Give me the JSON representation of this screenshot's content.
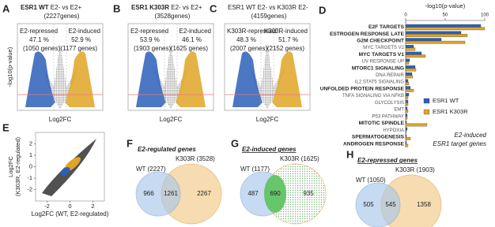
{
  "volcano": [
    {
      "letter": "A",
      "title_bold": "ESR1 WT",
      "title_rest": " E2- vs E2+",
      "total": "(2227genes)",
      "left_label": "E2-repressed",
      "left_pct": "47.1 %",
      "left_count": "(1050 genes)",
      "right_label": "E2-induced",
      "right_pct": "52.9 %",
      "right_count": "(1177 genes)",
      "xlabel": "Log2FC",
      "ylabel": "-log10(p-value)"
    },
    {
      "letter": "B",
      "title_bold": "ESR1 K303R",
      "title_rest": " E2- vs E2+",
      "total": "(3528genes)",
      "left_label": "E2-repressed",
      "left_pct": "53.9 %",
      "left_count": "(1903 genes)",
      "right_label": "E2-induced",
      "right_pct": "46.1 %",
      "right_count": "(1625 genes)",
      "xlabel": "Log2FC"
    },
    {
      "letter": "C",
      "title_bold": "",
      "title_rest": "ESR1 WT E2- vs K303R E2-",
      "total": "(4159genes)",
      "left_label": "K303R-repressed",
      "left_pct": "48.3 %",
      "left_count": "(2007 genes)",
      "right_label": "K303R-induced",
      "right_pct": "51.7 %",
      "right_count": "(2152 genes)",
      "xlabel": "Log2FC"
    }
  ],
  "scatter": {
    "letter": "E",
    "xlabel": "Log2FC (WT, E2-regulated)",
    "ylabel": [
      "Log2FC",
      "(K303R, E2-regulated)"
    ],
    "xlim": [
      -3,
      3
    ],
    "ylim": [
      -3,
      3
    ],
    "xticks": [
      -2,
      0,
      2
    ],
    "yticks": [
      -2,
      -1,
      0,
      1,
      2
    ]
  },
  "chart_data": {
    "type": "barh",
    "letter": "D",
    "xlabel": "-log10(p-value)",
    "xlim": [
      0,
      100
    ],
    "xticks": [
      0,
      50,
      100
    ],
    "categories": [
      "E2F TARGETS",
      "ESTROGEN RESPONSE LATE",
      "G2M CHECKPOINT",
      "MYC TARGETS V2",
      "MYC TARGETS V1",
      "UV RESPONSE UP",
      "MTORC1 SIGNALING",
      "DNA REPAIR",
      "IL2 STAT5 SIGNALING",
      "UNFOLDED PROTEIN RESPONSE",
      "TNFA SIGNALING VIA NFKB",
      "GLYCOLYSIS",
      "EMT",
      "P53 PATHWAY",
      "MITOTIC SPINDLE",
      "HYPOXIA",
      "SPERMATOGENESIS",
      "ANDROGEN RESPONSE"
    ],
    "bold": [
      true,
      true,
      true,
      false,
      true,
      false,
      true,
      false,
      false,
      true,
      false,
      false,
      false,
      false,
      true,
      false,
      true,
      true
    ],
    "series": [
      {
        "name": "ESR1 WT",
        "color": "#2c5fb8",
        "values": [
          95,
          70,
          45,
          10,
          20,
          5,
          12,
          8,
          3,
          6,
          4,
          3,
          2,
          2,
          1,
          2,
          1,
          1
        ]
      },
      {
        "name": "ESR1 K303R",
        "color": "#e0a526",
        "values": [
          100,
          78,
          75,
          12,
          25,
          4,
          13,
          9,
          4,
          10,
          3,
          3,
          3,
          2,
          27,
          1,
          6,
          3
        ]
      }
    ],
    "legend": "right",
    "annotation": [
      "E2-induced",
      "ESR1 target genes"
    ]
  },
  "venn": [
    {
      "letter": "F",
      "title": "E2-regulated genes",
      "right_set": "K303R (3528)",
      "left_set": "WT (2227)",
      "left_only": "966",
      "both": "1261",
      "right_only": "2267"
    },
    {
      "letter": "G",
      "title": "E2-induced genes",
      "right_set": "K303R (1625)",
      "left_set": "WT (1177)",
      "left_only": "487",
      "both": "690",
      "right_only": "935"
    },
    {
      "letter": "H",
      "title": "E2-repressed genes",
      "right_set": "K303R (1903)",
      "left_set": "WT (1050)",
      "left_only": "505",
      "both": "545",
      "right_only": "1358"
    }
  ]
}
